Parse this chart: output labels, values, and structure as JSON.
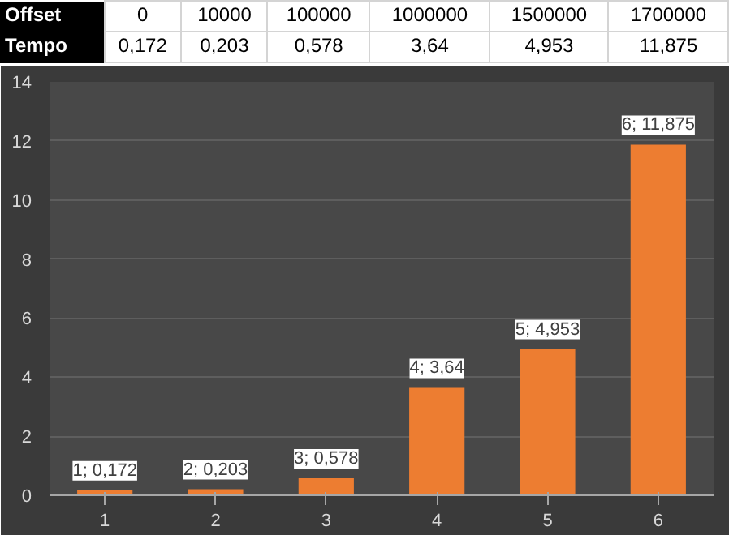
{
  "chart_data": {
    "type": "bar",
    "categories": [
      "1",
      "2",
      "3",
      "4",
      "5",
      "6"
    ],
    "values": [
      0.172,
      0.203,
      0.578,
      3.64,
      4.953,
      11.875
    ],
    "color": "#ed7d31",
    "value_labels": [
      "1; 0,172",
      "2; 0,203",
      "3; 0,578",
      "4; 3,64",
      "5; 4,953",
      "6; 11,875"
    ],
    "ylim": [
      0,
      14
    ],
    "yticks": [
      0,
      2,
      4,
      6,
      8,
      10,
      12,
      14
    ],
    "grid": "y",
    "annotations": [
      "Offset",
      "0",
      "10000",
      "100000",
      "1000000",
      "1500000",
      "1700000",
      "Tempo",
      "0,172",
      "0,203",
      "0,578",
      "3,64",
      "4,953",
      "11,875"
    ]
  }
}
